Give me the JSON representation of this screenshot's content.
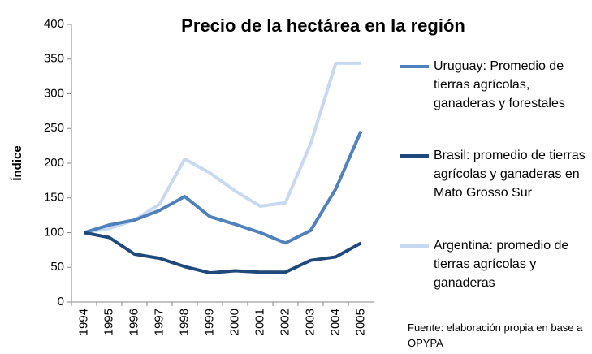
{
  "chart_data": {
    "type": "line",
    "title": "Precio de la hectárea en la región",
    "y_label": "Índice",
    "note": "Fuente: elaboración propia en base a OPYPA",
    "categories": [
      "1994",
      "1995",
      "1996",
      "1997",
      "1998",
      "1999",
      "2000",
      "2001",
      "2002",
      "2003",
      "2004",
      "2005"
    ],
    "series": [
      {
        "name": "Uruguay: Promedio de tierras agrícolas, ganaderas y forestales",
        "color": "#4f81bd",
        "values": [
          100,
          111,
          118,
          132,
          152,
          123,
          112,
          100,
          85,
          103,
          163,
          246
        ]
      },
      {
        "name": "Brasil: promedio de tierras agrícolas y ganaderas en Mato Grosso Sur",
        "color": "#1f497d",
        "values": [
          100,
          93,
          69,
          63,
          51,
          42,
          45,
          43,
          43,
          60,
          65,
          85
        ]
      },
      {
        "name": "Argentina: promedio de tierras agrícolas y ganaderas",
        "color": "#c6d9f1",
        "values": [
          100,
          106,
          118,
          141,
          206,
          186,
          160,
          138,
          143,
          228,
          344,
          344
        ]
      }
    ],
    "ylim": [
      0,
      400
    ],
    "yticks": [
      0,
      50,
      100,
      150,
      200,
      250,
      300,
      350,
      400
    ]
  }
}
